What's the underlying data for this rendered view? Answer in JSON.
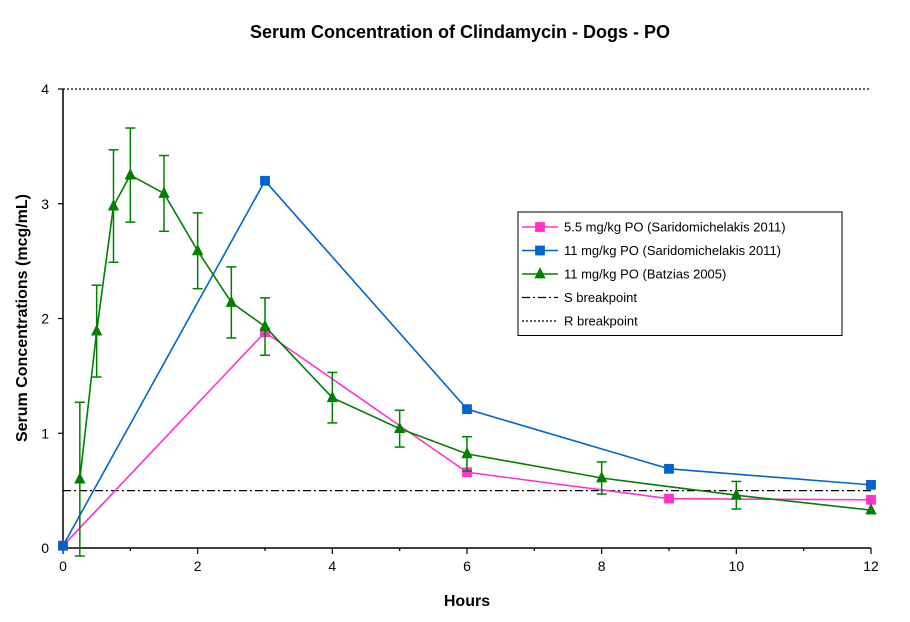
{
  "chart_data": {
    "type": "line",
    "title": "Serum Concentration of Clindamycin - Dogs - PO",
    "xlabel": "Hours",
    "ylabel": "Serum Concentrations (mcg/mL)",
    "xlim": [
      0,
      12
    ],
    "ylim": [
      0,
      4
    ],
    "xticks": [
      0,
      2,
      4,
      6,
      8,
      10,
      12
    ],
    "yticks": [
      0,
      1,
      2,
      3,
      4
    ],
    "legend_position": "right",
    "series": [
      {
        "name": "5.5 mg/kg PO (Saridomichelakis 2011)",
        "color": "#ff33cc",
        "marker": "square",
        "points": [
          [
            0,
            0.02
          ],
          [
            3,
            1.88
          ],
          [
            6,
            0.66
          ],
          [
            9,
            0.43
          ],
          [
            12,
            0.42
          ]
        ]
      },
      {
        "name": "11 mg/kg PO (Saridomichelakis 2011)",
        "color": "#0066cc",
        "marker": "square",
        "points": [
          [
            0,
            0.02
          ],
          [
            3,
            3.2
          ],
          [
            6,
            1.21
          ],
          [
            9,
            0.69
          ],
          [
            12,
            0.55
          ]
        ]
      },
      {
        "name": "11 mg/kg PO (Batzias 2005)",
        "color": "#008000",
        "marker": "triangle",
        "points": [
          [
            0.25,
            0.6
          ],
          [
            0.5,
            1.89
          ],
          [
            0.75,
            2.98
          ],
          [
            1,
            3.25
          ],
          [
            1.5,
            3.09
          ],
          [
            2,
            2.59
          ],
          [
            2.5,
            2.14
          ],
          [
            3,
            1.93
          ],
          [
            4,
            1.31
          ],
          [
            5,
            1.04
          ],
          [
            6,
            0.82
          ],
          [
            8,
            0.61
          ],
          [
            10,
            0.46
          ],
          [
            12,
            0.33
          ]
        ],
        "errors": [
          0.67,
          0.4,
          0.49,
          0.41,
          0.33,
          0.33,
          0.31,
          0.25,
          0.22,
          0.16,
          0.15,
          0.14,
          0.12,
          0
        ]
      }
    ],
    "reference_lines": [
      {
        "name": "S breakpoint",
        "value": 0.5,
        "style": "dash-dot"
      },
      {
        "name": "R breakpoint",
        "value": 4,
        "style": "dotted"
      }
    ]
  }
}
